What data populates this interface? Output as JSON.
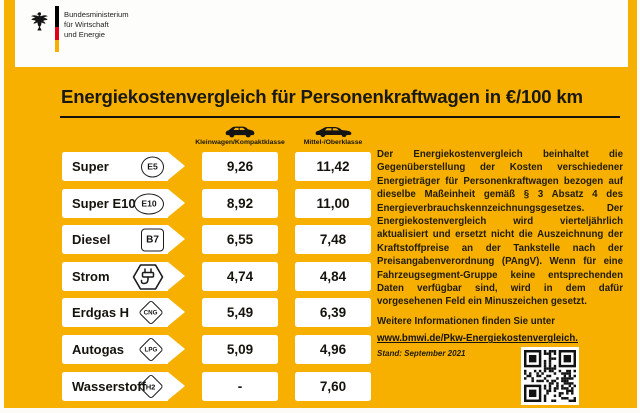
{
  "logo": {
    "eagle_icon": "federal-eagle-icon",
    "flag_icon": "german-flag-stripe-icon",
    "ministry_lines": [
      "Bundesministerium",
      "für Wirtschaft",
      "und Energie"
    ]
  },
  "title": "Energiekostenvergleich für Personenkraftwagen in €/100 km",
  "table": {
    "columns": [
      {
        "label": "Kleinwagen/Kompaktklasse",
        "icon": "compact-car-icon"
      },
      {
        "label": "Mittel-/Oberklasse",
        "icon": "sedan-car-icon"
      }
    ],
    "rows": [
      {
        "fuel": "Super",
        "badge": "E5",
        "badge_shape": "circle",
        "values": [
          "9,26",
          "11,42"
        ]
      },
      {
        "fuel": "Super E10",
        "badge": "E10",
        "badge_shape": "circle",
        "values": [
          "8,92",
          "11,00"
        ]
      },
      {
        "fuel": "Diesel",
        "badge": "B7",
        "badge_shape": "square",
        "values": [
          "6,55",
          "7,48"
        ]
      },
      {
        "fuel": "Strom",
        "badge": "",
        "badge_icon": "power-plug-icon",
        "badge_shape": "hexagon",
        "values": [
          "4,74",
          "4,84"
        ]
      },
      {
        "fuel": "Erdgas H",
        "badge": "CNG",
        "badge_shape": "diamond",
        "values": [
          "5,49",
          "6,39"
        ]
      },
      {
        "fuel": "Autogas",
        "badge": "LPG",
        "badge_shape": "diamond",
        "values": [
          "5,09",
          "4,96"
        ]
      },
      {
        "fuel": "Wasserstoff",
        "badge": "H2",
        "badge_shape": "diamond",
        "values": [
          "-",
          "7,60"
        ]
      }
    ]
  },
  "info": {
    "paragraph": "Der Energiekostenvergleich beinhaltet die Gegenüberstellung der Kosten verschiedener Energieträger für Personenkraftwagen bezogen auf dieselbe Maßeinheit gemäß § 3 Absatz 4 des Energieverbrauchskennzeichnungsgesetzes. Der Energiekostenvergleich wird vierteljährlich aktualisiert und ersetzt nicht die Auszeichnung der Kraftstoffpreise an der Tankstelle nach der Preisangabenverordnung (PAngV). Wenn für eine Fahrzeugsegment-Gruppe keine entsprechenden Daten verfügbar sind, wird in dem dafür vorgesehenen Feld ein Minuszeichen gesetzt.",
    "more_info_label": "Weitere Informationen finden Sie unter",
    "link": "www.bmwi.de/Pkw-Energiekostenvergleich.",
    "date_stamp": "Stand: September 2021",
    "qr_icon": "qr-code-icon"
  },
  "colors": {
    "background_yellow": "#F7B000",
    "panel_white": "#FFFFFF",
    "text_black": "#1C1A12",
    "flag_black": "#000000",
    "flag_red": "#E1001A",
    "flag_gold": "#F7B000"
  },
  "chart_data": {
    "type": "table",
    "title": "Energiekostenvergleich für Personenkraftwagen in €/100 km",
    "unit": "€/100 km",
    "categories": [
      "Super",
      "Super E10",
      "Diesel",
      "Strom",
      "Erdgas H",
      "Autogas",
      "Wasserstoff"
    ],
    "fuel_badges": [
      "E5",
      "E10",
      "B7",
      "Strom",
      "CNG",
      "LPG",
      "H2"
    ],
    "series": [
      {
        "name": "Kleinwagen/Kompaktklasse",
        "values": [
          9.26,
          8.92,
          6.55,
          4.74,
          5.49,
          5.09,
          null
        ]
      },
      {
        "name": "Mittel-/Oberklasse",
        "values": [
          11.42,
          11.0,
          7.48,
          4.84,
          6.39,
          4.96,
          7.6
        ]
      }
    ],
    "missing_value_marker": "-",
    "date_stamp": "Stand: September 2021"
  }
}
